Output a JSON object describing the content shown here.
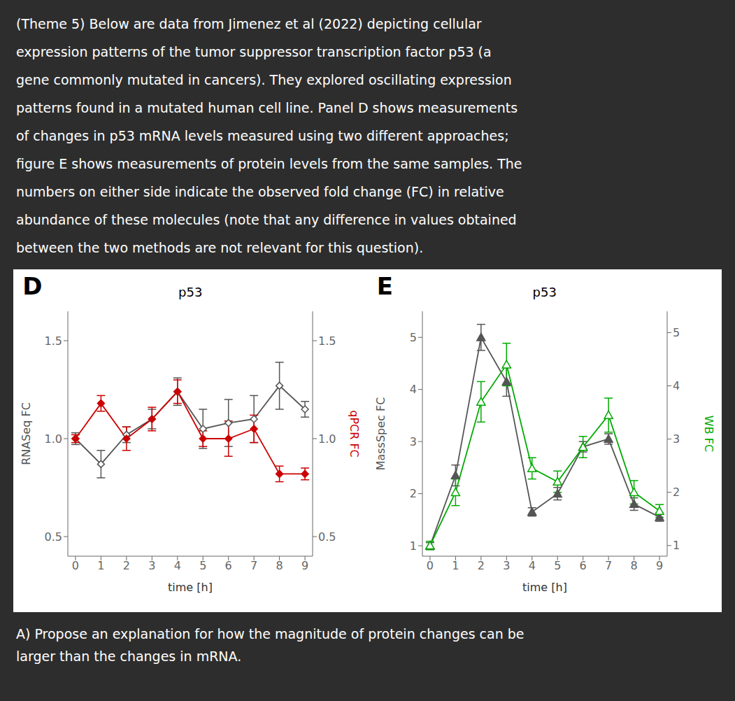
{
  "annotations": [
    "(Theme 5) Below are data from Jimenez et al (2022) depicting cellular\nexpression patterns of the tumor suppressor transcription factor p53 (a\ngene commonly mutated in cancers). They explored oscillating expression\npatterns found in a mutated human cell line. Panel D shows measurements\nof changes in p53 mRNA levels measured using two different approaches;\nfigure E shows measurements of protein levels from the same samples. The\nnumbers on either side indicate the observed fold change (FC) in relative\nabundance of these molecules (note that any difference in values obtained\nbetween the two methods are not relevant for this question).",
    "A) Propose an explanation for how the magnitude of protein changes can be\nlarger than the changes in mRNA."
  ],
  "chart_data": [
    {
      "type": "line",
      "annotations": [
        "D"
      ],
      "title": "p53",
      "xlabel": "time [h]",
      "ylabel": "RNASeq FC",
      "y2label": "qPCR FC",
      "grid": false,
      "x": [
        0,
        1,
        2,
        3,
        4,
        5,
        6,
        7,
        8,
        9
      ],
      "xlim": [
        -0.3,
        9.3
      ],
      "xticks": [
        0,
        1,
        2,
        3,
        4,
        5,
        6,
        7,
        8,
        9
      ],
      "ylim": [
        0.4,
        1.65
      ],
      "yticks": [
        0.5,
        {
          "value": 1.0,
          "label": "1.0"
        },
        1.5
      ],
      "y2lim": [
        0.4,
        1.65
      ],
      "y2ticks": [
        0.5,
        {
          "value": 1.0,
          "label": "1.0"
        },
        1.5
      ],
      "series": [
        {
          "color": "#555555",
          "marker": "diamond-open",
          "axis": "y",
          "values": [
            1.0,
            0.87,
            1.02,
            1.1,
            1.24,
            1.05,
            1.08,
            1.1,
            1.27,
            1.15
          ],
          "errors": [
            0.03,
            0.07,
            0.04,
            0.05,
            0.07,
            0.1,
            0.12,
            0.12,
            0.12,
            0.04
          ]
        },
        {
          "color": "#CC0000",
          "marker": "diamond",
          "axis": "y2",
          "values": [
            1.0,
            1.18,
            1.0,
            1.1,
            1.24,
            1.0,
            1.0,
            1.05,
            0.82,
            0.82
          ],
          "errors": [
            0.02,
            0.04,
            0.06,
            0.06,
            0.06,
            0.04,
            0.09,
            0.07,
            0.04,
            0.03
          ]
        }
      ]
    },
    {
      "type": "line",
      "annotations": [
        "E"
      ],
      "title": "p53",
      "xlabel": "time [h]",
      "ylabel": "MassSpec FC",
      "y2label": "WB FC",
      "grid": false,
      "x": [
        0,
        1,
        2,
        3,
        4,
        5,
        6,
        7,
        8,
        9
      ],
      "xlim": [
        -0.3,
        9.3
      ],
      "xticks": [
        0,
        1,
        2,
        3,
        4,
        5,
        6,
        7,
        8,
        9
      ],
      "ylim": [
        0.8,
        5.5
      ],
      "yticks": [
        1,
        2,
        3,
        4,
        5
      ],
      "y2lim": [
        0.8,
        5.4
      ],
      "y2ticks": [
        1,
        2,
        3,
        4,
        5
      ],
      "series": [
        {
          "color": "#555555",
          "marker": "triangle",
          "axis": "y",
          "values": [
            1.0,
            2.35,
            5.0,
            4.15,
            1.65,
            2.0,
            2.9,
            3.05,
            1.8,
            1.55
          ],
          "errors": [
            0.06,
            0.2,
            0.25,
            0.28,
            0.08,
            0.12,
            0.1,
            0.1,
            0.12,
            0.08
          ]
        },
        {
          "color": "#00AA00",
          "marker": "triangle-open",
          "axis": "y2",
          "values": [
            1.0,
            2.0,
            3.7,
            4.4,
            2.45,
            2.2,
            2.85,
            3.45,
            2.0,
            1.65
          ],
          "errors": [
            0.08,
            0.25,
            0.38,
            0.4,
            0.2,
            0.2,
            0.2,
            0.32,
            0.22,
            0.12
          ]
        }
      ]
    }
  ]
}
